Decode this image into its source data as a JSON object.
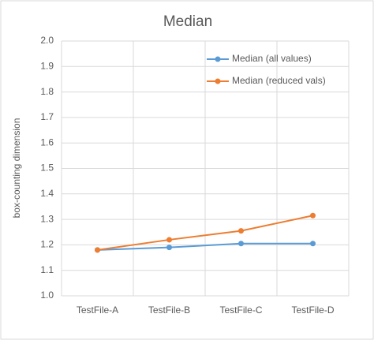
{
  "chart_data": {
    "type": "line",
    "title": "Median",
    "y_label": "box-counting dimension",
    "categories": [
      "TestFile-A",
      "TestFile-B",
      "TestFile-C",
      "TestFile-D"
    ],
    "series": [
      {
        "name": "Median (all values)",
        "color": "#5b9bd5",
        "values": [
          1.18,
          1.19,
          1.205,
          1.205
        ]
      },
      {
        "name": "Median (reduced vals)",
        "color": "#ed7d31",
        "values": [
          1.18,
          1.22,
          1.255,
          1.315
        ]
      }
    ],
    "ylim": [
      1.0,
      2.0
    ],
    "yticks": [
      {
        "value": 1.0,
        "label": "1.0"
      },
      1.1,
      1.2,
      1.3,
      1.4,
      1.5,
      1.6,
      1.7,
      1.8,
      1.9,
      {
        "value": 2.0,
        "label": "2.0"
      }
    ],
    "grid": true,
    "legend": "top-right"
  }
}
